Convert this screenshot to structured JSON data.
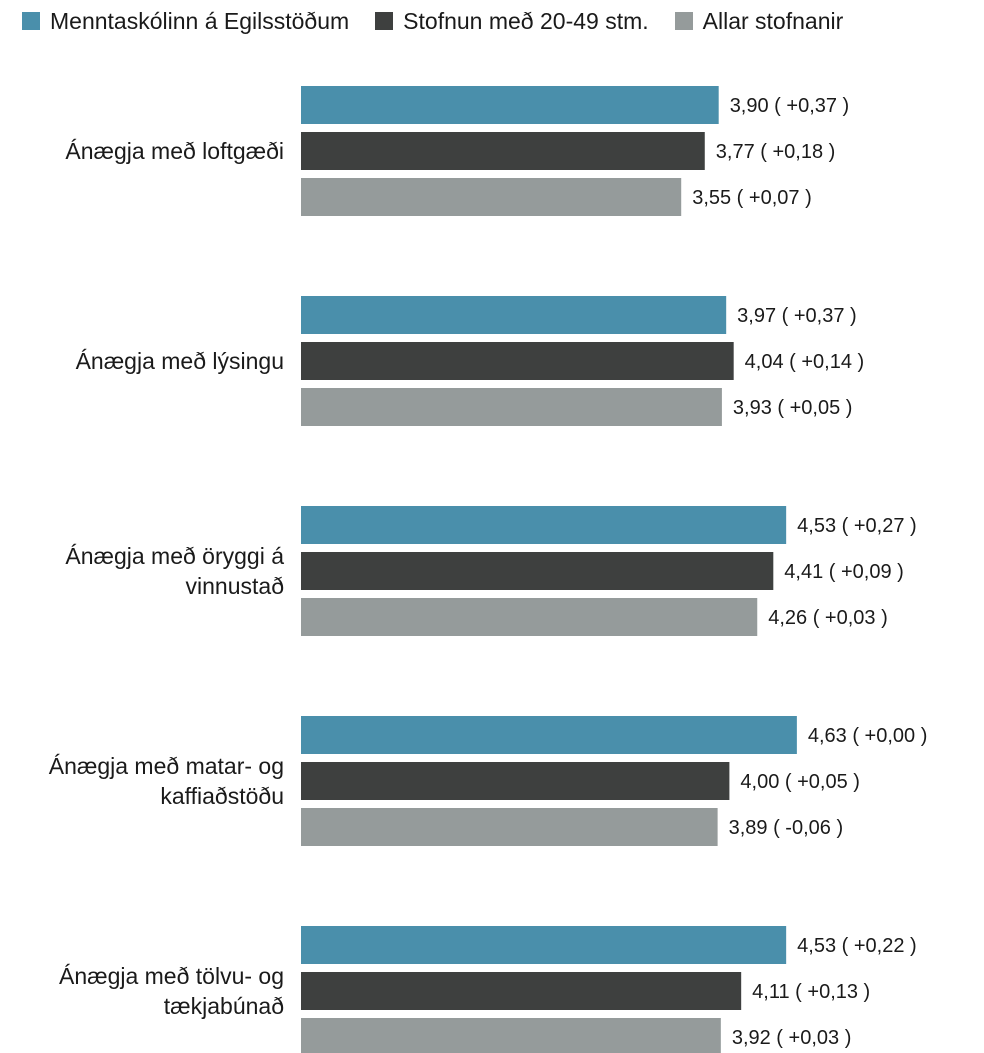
{
  "chart_data": {
    "type": "bar",
    "orientation": "horizontal",
    "title": "",
    "xlabel": "",
    "ylabel": "",
    "xlim": [
      0,
      5
    ],
    "grid": false,
    "legend_position": "top",
    "categories": [
      "Ánægja með loftgæði",
      "Ánægja með lýsingu",
      "Ánægja með öryggi á vinnustað",
      "Ánægja með matar- og kaffiaðstöðu",
      "Ánægja með tölvu- og tækjabúnað"
    ],
    "category_lines": [
      [
        "Ánægja með loftgæði"
      ],
      [
        "Ánægja með lýsingu"
      ],
      [
        "Ánægja með öryggi á",
        "vinnustað"
      ],
      [
        "Ánægja með matar- og",
        "kaffiaðstöðu"
      ],
      [
        "Ánægja með tölvu- og",
        "tækjabúnað"
      ]
    ],
    "series": [
      {
        "name": "Menntaskólinn á Egilsstöðum",
        "color": "#4a8fab",
        "values": [
          3.9,
          3.97,
          4.53,
          4.63,
          4.53
        ],
        "labels": [
          "3,90 ( +0,37 )",
          "3,97 ( +0,37 )",
          "4,53 ( +0,27 )",
          "4,63 ( +0,00 )",
          "4,53 ( +0,22 )"
        ]
      },
      {
        "name": "Stofnun með 20-49 stm.",
        "color": "#3e403f",
        "values": [
          3.77,
          4.04,
          4.41,
          4.0,
          4.11
        ],
        "labels": [
          "3,77 ( +0,18 )",
          "4,04 ( +0,14 )",
          "4,41 ( +0,09 )",
          "4,00 ( +0,05 )",
          "4,11 ( +0,13 )"
        ]
      },
      {
        "name": "Allar stofnanir",
        "color": "#959b9b",
        "values": [
          3.55,
          3.93,
          4.26,
          3.89,
          3.92
        ],
        "labels": [
          "3,55 ( +0,07 )",
          "3,93 ( +0,05 )",
          "4,26 ( +0,03 )",
          "3,89 ( -0,06 )",
          "3,92 ( +0,03 )"
        ]
      }
    ]
  }
}
